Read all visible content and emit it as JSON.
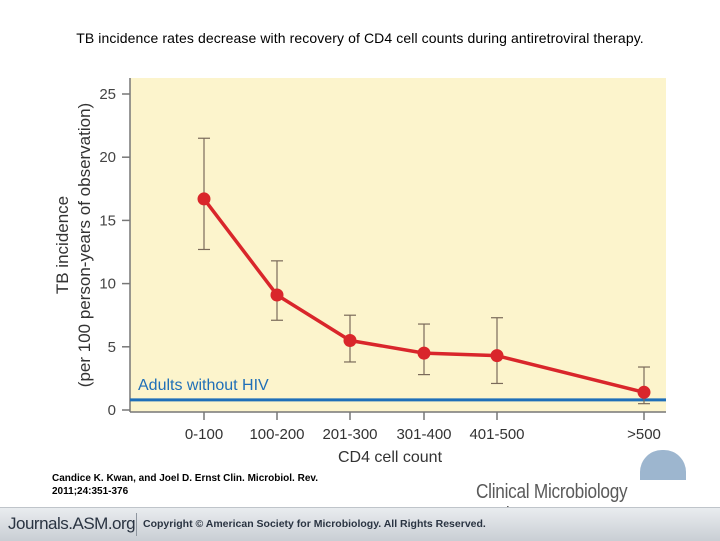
{
  "slide": {
    "title": "TB incidence rates decrease with recovery of CD4 cell counts during antiretroviral therapy.",
    "citation_line1": "Candice K. Kwan, and Joel D. Ernst Clin. Microbiol. Rev.",
    "citation_line2": "2011;24:351-376",
    "journal_name": "Clinical Microbiology Reviews",
    "footer_brand": "Journals.ASM.org",
    "footer_copyright": "Copyright © American Society for Microbiology. All Rights Reserved."
  },
  "chart_data": {
    "type": "line",
    "title": "",
    "xlabel": "CD4 cell count",
    "ylabel_line1": "TB incidence",
    "ylabel_line2": "(per 100 person-years of observation)",
    "categories": [
      "0-100",
      "100-200",
      "201-300",
      "301-400",
      "401-500",
      ">500"
    ],
    "ylim": [
      0,
      25
    ],
    "yticks": [
      0,
      5,
      10,
      15,
      20,
      25
    ],
    "grid": false,
    "series": [
      {
        "values": [
          16.7,
          9.1,
          5.5,
          4.5,
          4.3,
          1.4
        ],
        "error_low": [
          12.7,
          7.1,
          3.8,
          2.8,
          2.1,
          0.5
        ],
        "error_high": [
          21.5,
          11.8,
          7.5,
          6.8,
          7.3,
          3.4
        ],
        "color": "#d9262b"
      }
    ],
    "reference_line": {
      "label": "Adults without HIV",
      "value": 0.8,
      "color": "#1f6fb8"
    },
    "colors": {
      "plot_background": "#fcf4cc",
      "axis": "#777777",
      "error_bar": "#7a6a5a"
    }
  }
}
